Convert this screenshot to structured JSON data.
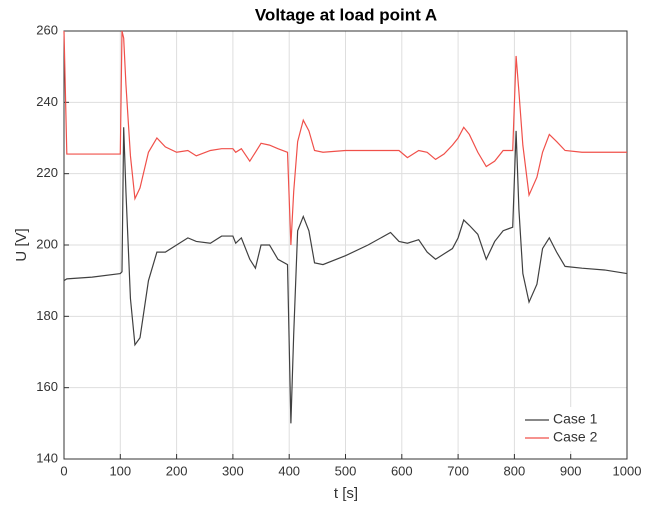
{
  "chart_data": {
    "type": "line",
    "title": "Voltage at load point A",
    "x_label": "t [s]",
    "y_label": "U [V]",
    "x": [
      0,
      5,
      50,
      100,
      103,
      106,
      110,
      118,
      126,
      135,
      150,
      165,
      180,
      200,
      220,
      235,
      260,
      280,
      300,
      305,
      315,
      330,
      340,
      350,
      365,
      380,
      397,
      403,
      408,
      415,
      425,
      435,
      445,
      460,
      500,
      540,
      580,
      595,
      610,
      630,
      645,
      660,
      675,
      690,
      700,
      710,
      720,
      735,
      750,
      765,
      780,
      797,
      803,
      808,
      815,
      826,
      840,
      850,
      862,
      875,
      890,
      920,
      960,
      1000
    ],
    "series": [
      {
        "name": "Case 1",
        "color": "#404040",
        "values": [
          190,
          190.5,
          191,
          192,
          192.5,
          233,
          215,
          185,
          172,
          174,
          190,
          198,
          198,
          200,
          202,
          201,
          200.5,
          202.5,
          202.5,
          200.5,
          202,
          196,
          193.5,
          200,
          200,
          196,
          194.5,
          150,
          175,
          204,
          208,
          204,
          195,
          194.5,
          197,
          200,
          203.5,
          201,
          200.5,
          201.5,
          198,
          196,
          197.5,
          199,
          202,
          207,
          205.5,
          203,
          196,
          201,
          204,
          205,
          232,
          210,
          192,
          184,
          189,
          199,
          202,
          198,
          194,
          193.5,
          193,
          192
        ]
      },
      {
        "name": "Case 2",
        "color": "#f0504a",
        "values": [
          260,
          225.5,
          225.5,
          225.5,
          260,
          258,
          245,
          225,
          213,
          216,
          226,
          230,
          227.5,
          226,
          226.5,
          225,
          226.5,
          227,
          227,
          226,
          227,
          223.5,
          226,
          228.5,
          228,
          227,
          226,
          200,
          215,
          229,
          235,
          232,
          226.5,
          226,
          226.5,
          226.5,
          226.5,
          226.5,
          224.5,
          226.5,
          226,
          224,
          225.5,
          228,
          230,
          233,
          231,
          226,
          222,
          223.5,
          226.5,
          226.5,
          253,
          243,
          228,
          214,
          219,
          226,
          231,
          229,
          226.5,
          226,
          226,
          226
        ]
      }
    ],
    "xlim": [
      0,
      1000
    ],
    "xticks": [
      0,
      100,
      200,
      300,
      400,
      500,
      600,
      700,
      800,
      900,
      1000
    ],
    "ylim": [
      140,
      260
    ],
    "yticks": [
      140,
      160,
      180,
      200,
      220,
      240,
      260
    ],
    "grid": true,
    "legend": "lower right"
  }
}
